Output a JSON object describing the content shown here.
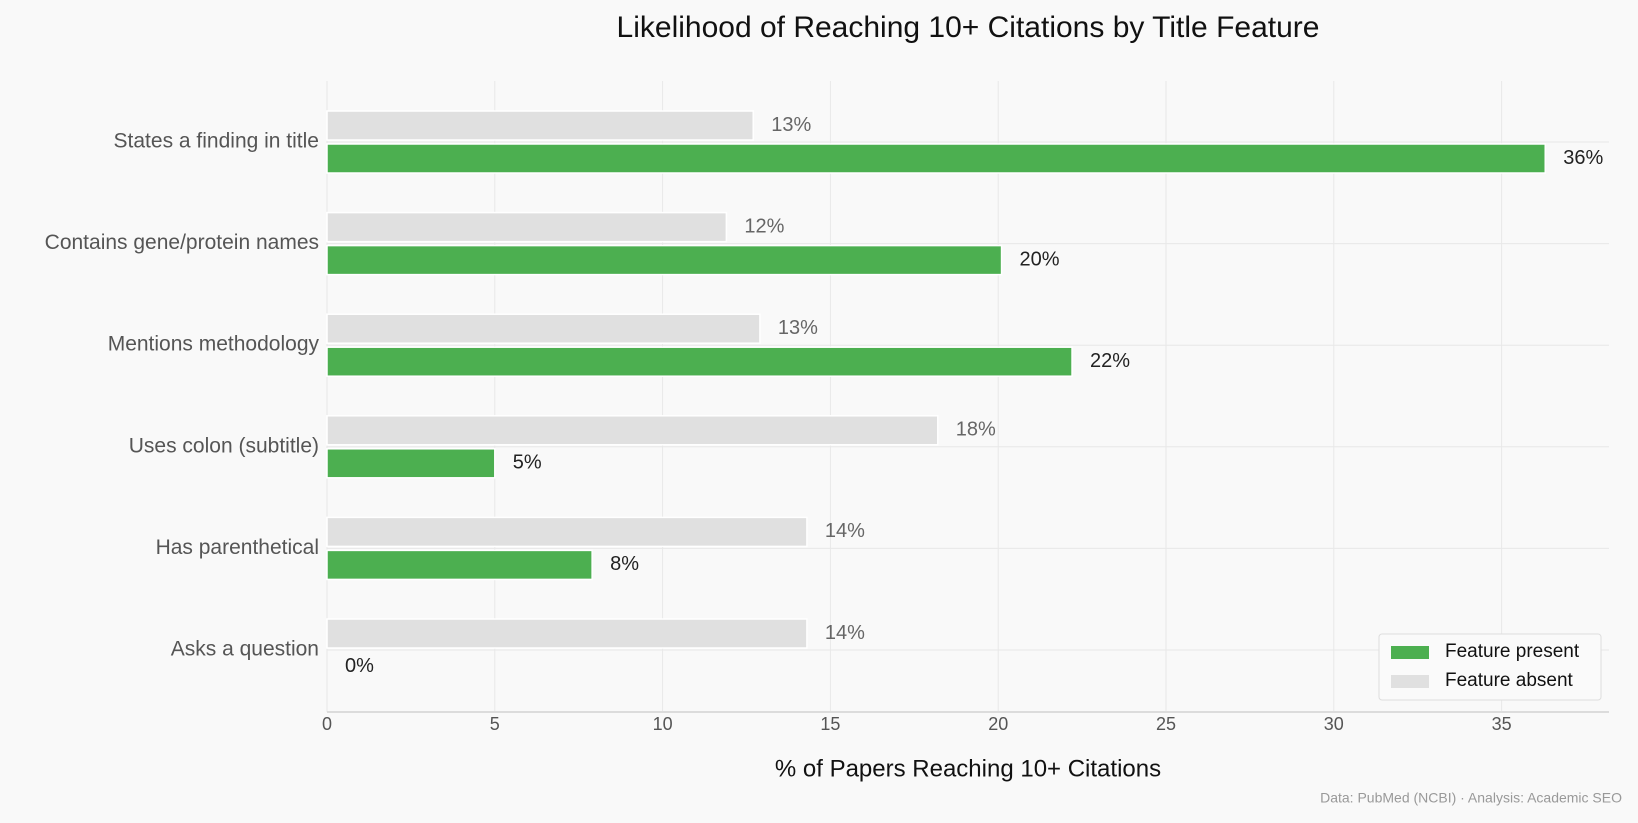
{
  "chart_data": {
    "type": "grouped-hbar",
    "title": "Likelihood of Reaching 10+ Citations by Title Feature",
    "x_label": "% of Papers Reaching 10+ Citations",
    "source": "Data: PubMed (NCBI) · Analysis: Academic SEO",
    "categories": [
      "States a finding in title",
      "Contains gene/protein names",
      "Mentions methodology",
      "Uses colon (subtitle)",
      "Has parenthetical",
      "Asks a question"
    ],
    "series": [
      {
        "name": "Feature present",
        "color": "#4caf50",
        "values": [
          36.3,
          20.1,
          22.2,
          5.0,
          7.9,
          0
        ],
        "value_labels": [
          "36%",
          "20%",
          "22%",
          "5%",
          "8%",
          "0%"
        ]
      },
      {
        "name": "Feature absent",
        "color": "#e0e0e0",
        "values": [
          12.7,
          11.9,
          12.9,
          18.2,
          14.3,
          14.3
        ],
        "value_labels": [
          "13%",
          "12%",
          "13%",
          "18%",
          "14%",
          "14%"
        ]
      }
    ],
    "xlim": [
      0,
      38.2
    ],
    "xticks": [
      0,
      5,
      10,
      15,
      20,
      25,
      30,
      35
    ],
    "grid": true,
    "legend": "lower right"
  }
}
